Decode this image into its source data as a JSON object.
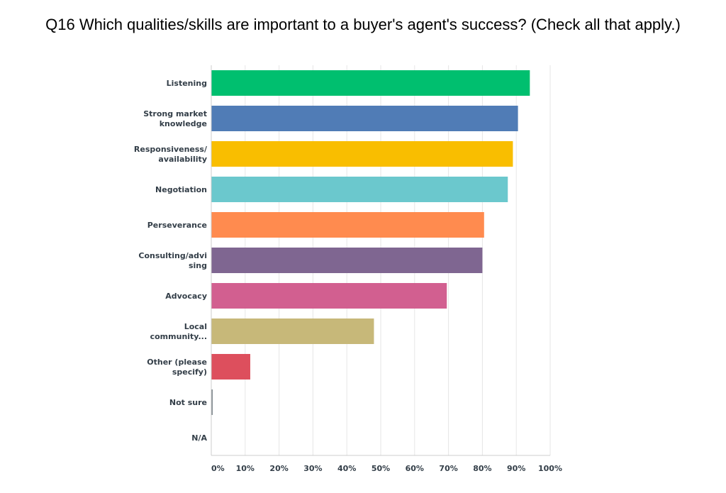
{
  "title": "Q16 Which qualities/skills are important to a buyer's agent's success? (Check all that apply.)",
  "chart_data": {
    "type": "bar",
    "orientation": "horizontal",
    "title": "Q16 Which qualities/skills are important to a buyer's agent's success? (Check all that apply.)",
    "categories": [
      [
        "Listening"
      ],
      [
        "Strong market",
        "knowledge"
      ],
      [
        "Responsiveness/",
        "availability"
      ],
      [
        "Negotiation"
      ],
      [
        "Perseverance"
      ],
      [
        "Consulting/advi",
        "sing"
      ],
      [
        "Advocacy"
      ],
      [
        "Local",
        "community..."
      ],
      [
        "Other (please",
        "specify)"
      ],
      [
        "Not sure"
      ],
      [
        "N/A"
      ]
    ],
    "values": [
      94,
      90.5,
      89,
      87.5,
      80.5,
      80,
      69.5,
      48,
      11.5,
      0.4,
      0
    ],
    "colors": [
      "#00bf6f",
      "#507cb6",
      "#f9be00",
      "#6bc8cd",
      "#ff8b4f",
      "#7f6691",
      "#d25f90",
      "#c7b879",
      "#dd4f5d",
      "#768086",
      "#4a90e2"
    ],
    "xlim": [
      0,
      100
    ],
    "xticks": [
      "0%",
      "10%",
      "20%",
      "30%",
      "40%",
      "50%",
      "60%",
      "70%",
      "80%",
      "90%",
      "100%"
    ],
    "grid": true,
    "legend": "none"
  }
}
